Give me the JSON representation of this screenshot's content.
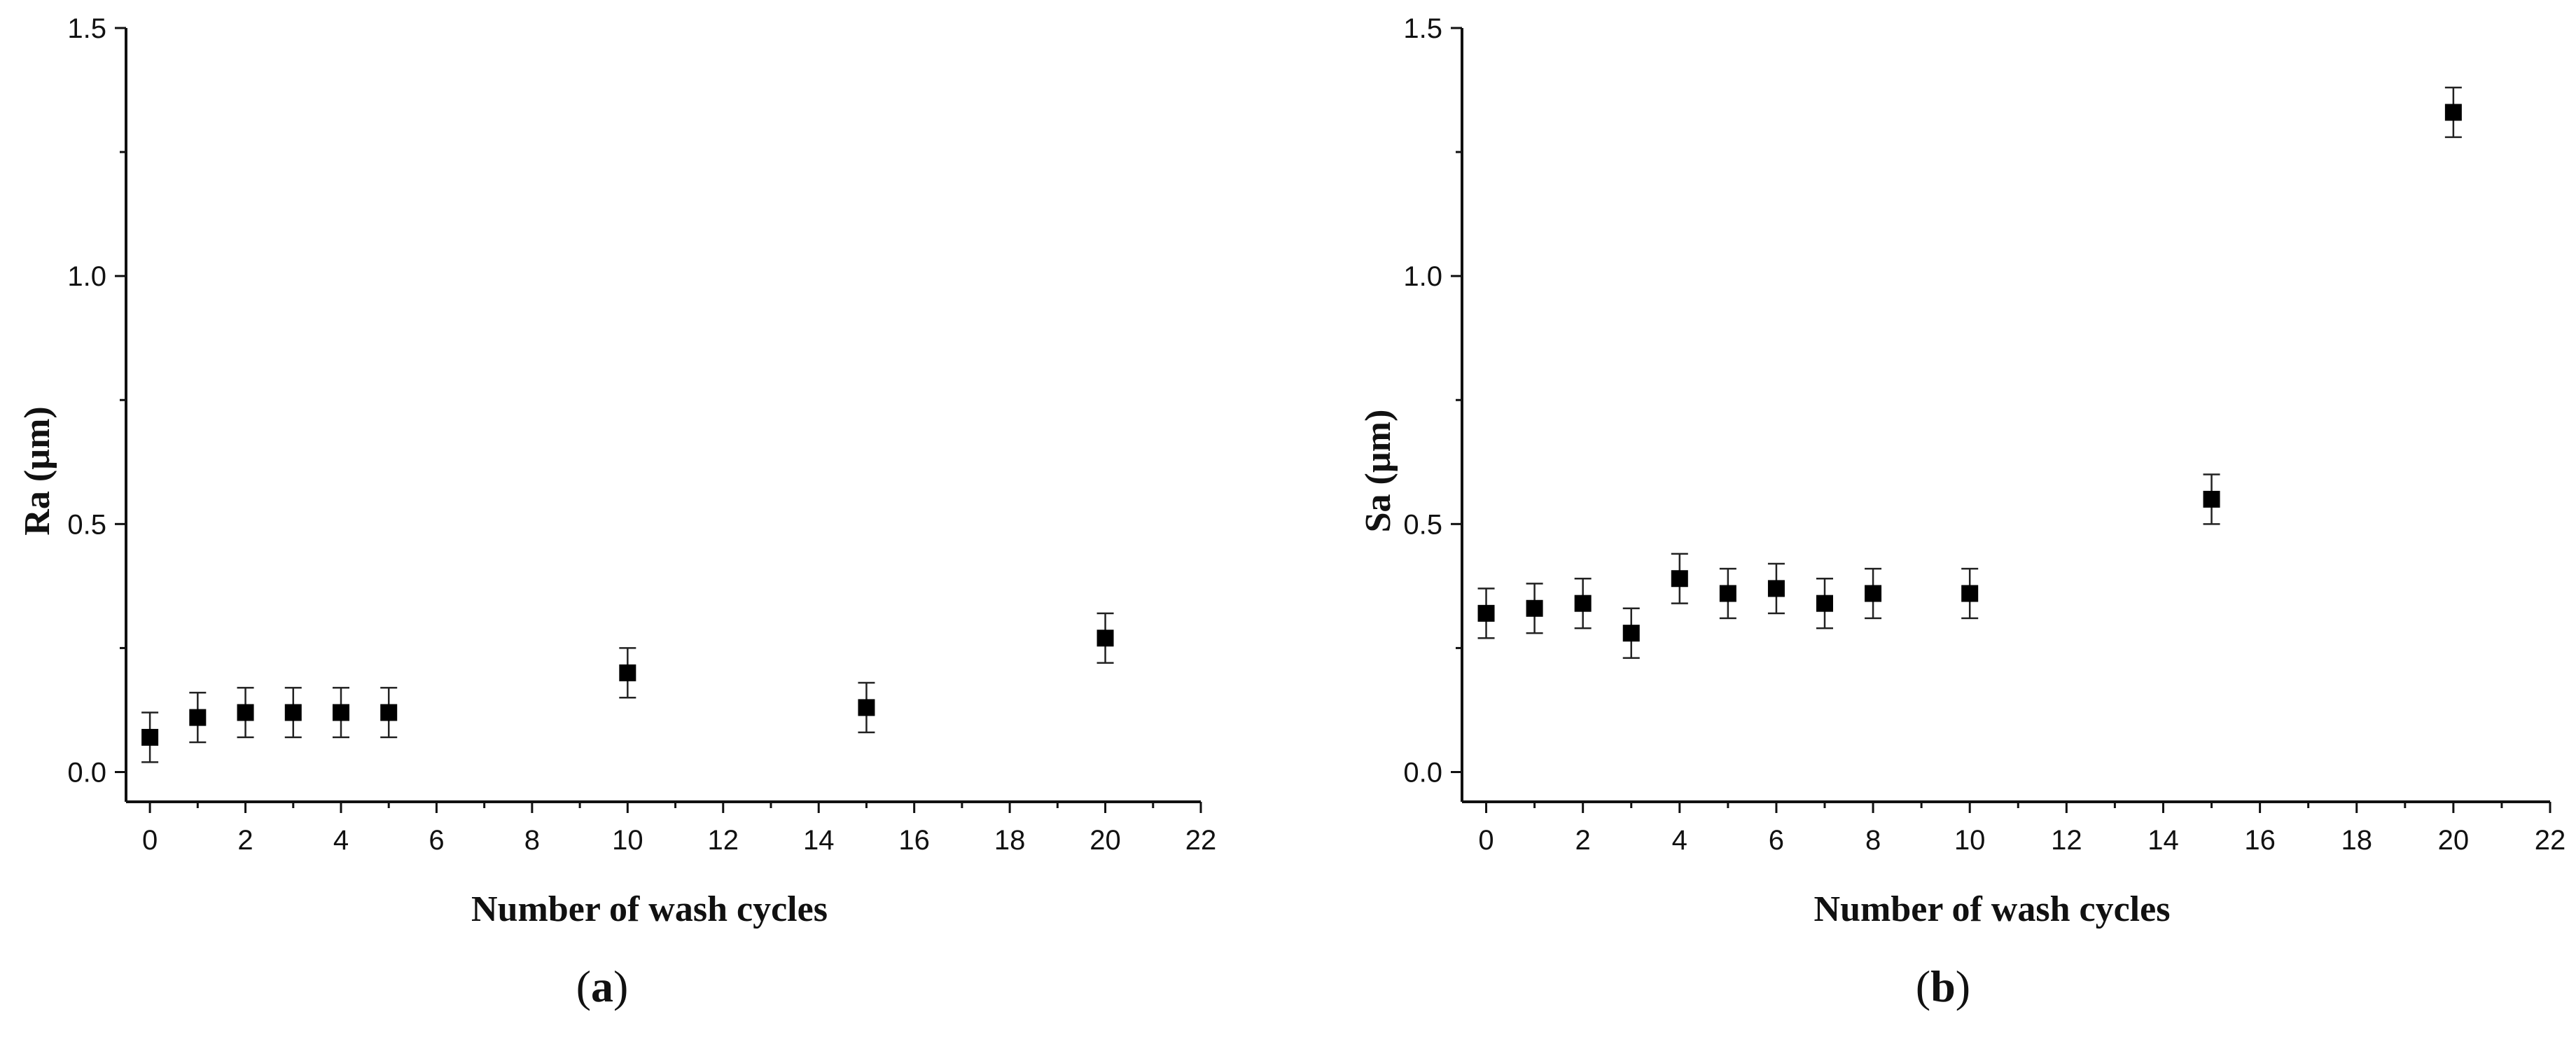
{
  "chart_data": [
    {
      "type": "scatter",
      "panel": "a",
      "panel_label": "a",
      "xlabel": "Number of wash cycles",
      "ylabel": "Ra (µm)",
      "xlim": [
        -0.5,
        22
      ],
      "ylim": [
        -0.06,
        1.5
      ],
      "xticks": [
        0,
        2,
        4,
        6,
        8,
        10,
        12,
        14,
        16,
        18,
        20,
        22
      ],
      "yticks": [
        0.0,
        0.5,
        1.0,
        1.5
      ],
      "ytick_labels": [
        "0.0",
        "0.5",
        "1.0",
        "1.5"
      ],
      "xtick_labels": [
        "0",
        "2",
        "4",
        "6",
        "8",
        "10",
        "12",
        "14",
        "16",
        "18",
        "20",
        "22"
      ],
      "points": [
        {
          "x": 0,
          "y": 0.07,
          "err": 0.05
        },
        {
          "x": 1,
          "y": 0.11,
          "err": 0.05
        },
        {
          "x": 2,
          "y": 0.12,
          "err": 0.05
        },
        {
          "x": 3,
          "y": 0.12,
          "err": 0.05
        },
        {
          "x": 4,
          "y": 0.12,
          "err": 0.05
        },
        {
          "x": 5,
          "y": 0.12,
          "err": 0.05
        },
        {
          "x": 10,
          "y": 0.2,
          "err": 0.05
        },
        {
          "x": 15,
          "y": 0.13,
          "err": 0.05
        },
        {
          "x": 20,
          "y": 0.27,
          "err": 0.05
        }
      ]
    },
    {
      "type": "scatter",
      "panel": "b",
      "panel_label": "b",
      "xlabel": "Number of wash cycles",
      "ylabel": "Sa (µm)",
      "xlim": [
        -0.5,
        22
      ],
      "ylim": [
        -0.06,
        1.5
      ],
      "xticks": [
        0,
        2,
        4,
        6,
        8,
        10,
        12,
        14,
        16,
        18,
        20,
        22
      ],
      "yticks": [
        0.0,
        0.5,
        1.0,
        1.5
      ],
      "ytick_labels": [
        "0.0",
        "0.5",
        "1.0",
        "1.5"
      ],
      "xtick_labels": [
        "0",
        "2",
        "4",
        "6",
        "8",
        "10",
        "12",
        "14",
        "16",
        "18",
        "20",
        "22"
      ],
      "points": [
        {
          "x": 0,
          "y": 0.32,
          "err": 0.05
        },
        {
          "x": 1,
          "y": 0.33,
          "err": 0.05
        },
        {
          "x": 2,
          "y": 0.34,
          "err": 0.05
        },
        {
          "x": 3,
          "y": 0.28,
          "err": 0.05
        },
        {
          "x": 4,
          "y": 0.39,
          "err": 0.05
        },
        {
          "x": 5,
          "y": 0.36,
          "err": 0.05
        },
        {
          "x": 6,
          "y": 0.37,
          "err": 0.05
        },
        {
          "x": 7,
          "y": 0.34,
          "err": 0.05
        },
        {
          "x": 8,
          "y": 0.36,
          "err": 0.05
        },
        {
          "x": 10,
          "y": 0.36,
          "err": 0.05
        },
        {
          "x": 15,
          "y": 0.55,
          "err": 0.05
        },
        {
          "x": 20,
          "y": 1.33,
          "err": 0.05
        }
      ]
    }
  ]
}
